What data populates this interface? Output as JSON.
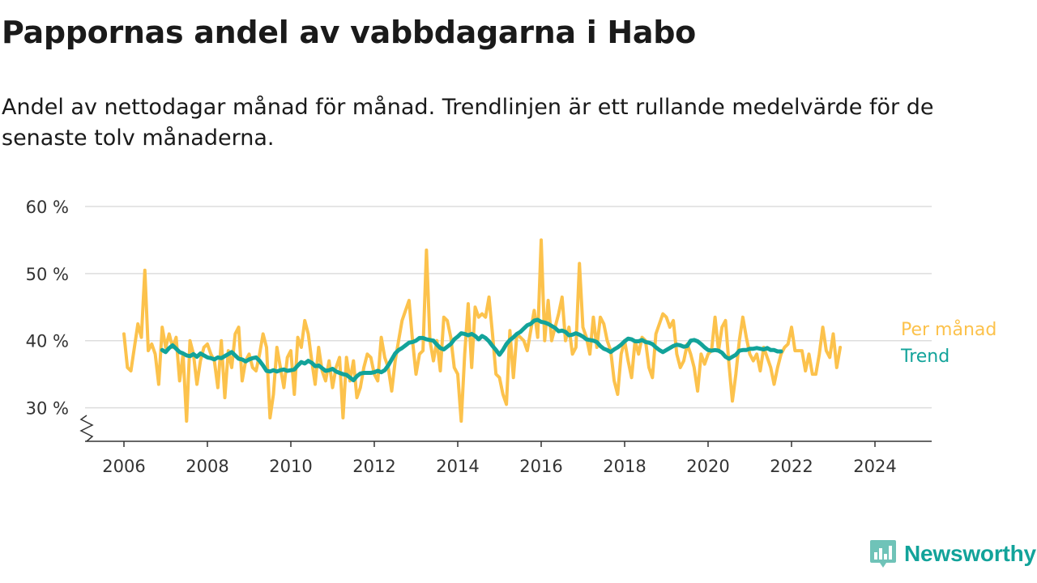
{
  "header": {
    "title": "Pappornas andel av vabbdagarna i Habo",
    "subtitle": "Andel av nettodagar månad för månad. Trendlinjen är ett rullande medelvärde för de senaste tolv månaderna."
  },
  "brand": {
    "name": "Newsworthy",
    "icon": "bar-chart-logo-icon",
    "color": "#12a39a"
  },
  "colors": {
    "monthly": "#fcc24c",
    "trend": "#12a39a",
    "grid": "#dddddd",
    "axis": "#333333"
  },
  "chart_data": {
    "type": "line",
    "title": "Pappornas andel av vabbdagarna i Habo",
    "xlabel": "",
    "ylabel": "",
    "ylim": [
      25,
      60
    ],
    "y_ticks": [
      30,
      40,
      50,
      60
    ],
    "y_tick_labels": [
      "30 %",
      "40 %",
      "50 %",
      "60 %"
    ],
    "xlim": [
      2005.5,
      2025.2
    ],
    "x_ticks": [
      2006,
      2008,
      2010,
      2012,
      2014,
      2016,
      2018,
      2020,
      2022,
      2024
    ],
    "x_tick_labels": [
      "2006",
      "2008",
      "2010",
      "2012",
      "2014",
      "2016",
      "2018",
      "2020",
      "2022",
      "2024"
    ],
    "broken_y_axis": true,
    "grid": "horizontal",
    "legend_placement": "end-of-line labels, right",
    "series": [
      {
        "name": "Per månad",
        "color": "#fcc24c",
        "start": "2006-01",
        "frequency": "monthly",
        "values": [
          41,
          36,
          35.5,
          39,
          42.5,
          40.5,
          50.5,
          38.5,
          39.5,
          38,
          33.5,
          42,
          39,
          41,
          39,
          40.5,
          34,
          38,
          28,
          40,
          38,
          33.5,
          37,
          39,
          39.5,
          38,
          37,
          33,
          40,
          31.5,
          38.5,
          36,
          41,
          42,
          34,
          37,
          38,
          36,
          35.5,
          38,
          41,
          39,
          28.5,
          32,
          39,
          36,
          33,
          37.5,
          38.5,
          32,
          40.5,
          39,
          43,
          41,
          37,
          33.5,
          39,
          35.5,
          34,
          37,
          33,
          36,
          37.5,
          28.5,
          37.5,
          34,
          37,
          31.5,
          33,
          36,
          38,
          37.5,
          35,
          34,
          40.5,
          37.5,
          36,
          32.5,
          37,
          40,
          43,
          44.5,
          46,
          40,
          35,
          38,
          38.5,
          53.5,
          40,
          37,
          40,
          35.5,
          43.5,
          43,
          40.5,
          36,
          35,
          28,
          38,
          45.5,
          36,
          45,
          43.5,
          44,
          43.5,
          46.5,
          41,
          35,
          34.5,
          32,
          30.5,
          41.5,
          34.5,
          41,
          40.5,
          40,
          38.5,
          41.5,
          44.5,
          40.5,
          55,
          40,
          46,
          40,
          42,
          44,
          46.5,
          40,
          42,
          38,
          39,
          51.5,
          42,
          40.5,
          38,
          43.5,
          39,
          43.5,
          42.5,
          40,
          38.5,
          34,
          32,
          38,
          40,
          37,
          34.5,
          40,
          38,
          40.5,
          40,
          36,
          34.5,
          41,
          42.5,
          44,
          43.5,
          42,
          43,
          38,
          36,
          37,
          39.5,
          38,
          36,
          32.5,
          38,
          36.5,
          38,
          38.5,
          43.5,
          38.5,
          42,
          43,
          36.5,
          31,
          35,
          40,
          43.5,
          40.5,
          38,
          37,
          38,
          35.5,
          39,
          37.5,
          36,
          33.5,
          36,
          38,
          39,
          39.5,
          42,
          38.5,
          38.5,
          38.5,
          35.5,
          38,
          35,
          35,
          38,
          42,
          38.5,
          37.5,
          41,
          36,
          39
        ]
      },
      {
        "name": "Trend",
        "color": "#12a39a",
        "start": "2006-12",
        "frequency": "monthly",
        "values": [
          38.6,
          38.3,
          38.9,
          39.3,
          38.8,
          38.3,
          38.1,
          37.8,
          37.7,
          38,
          37.6,
          38.1,
          37.8,
          37.5,
          37.4,
          37.2,
          37.5,
          37.4,
          37.7,
          38,
          38.3,
          37.8,
          37.3,
          37.2,
          36.9,
          37.2,
          37.4,
          37.5,
          37,
          36.3,
          35.5,
          35.4,
          35.6,
          35.4,
          35.6,
          35.7,
          35.5,
          35.6,
          35.7,
          36.3,
          36.8,
          36.6,
          37,
          36.7,
          36.2,
          36.3,
          35.9,
          35.5,
          35.6,
          35.8,
          35.4,
          35.2,
          35,
          34.9,
          34.5,
          34.1,
          34.7,
          35.1,
          35.2,
          35.2,
          35.2,
          35.3,
          35.5,
          35.3,
          35.6,
          36.3,
          37.2,
          38.1,
          38.6,
          38.9,
          39.3,
          39.7,
          39.8,
          40,
          40.4,
          40.4,
          40.2,
          40.1,
          40,
          39.4,
          38.9,
          38.7,
          39.1,
          39.5,
          40.2,
          40.6,
          41.1,
          41,
          40.8,
          41,
          40.7,
          40.2,
          40.7,
          40.4,
          39.9,
          39.2,
          38.6,
          37.9,
          38.6,
          39.5,
          40.1,
          40.5,
          41,
          41.3,
          41.8,
          42.3,
          42.5,
          43,
          43.1,
          42.8,
          42.7,
          42.5,
          42.2,
          41.9,
          41.4,
          41.5,
          41.3,
          40.8,
          40.9,
          41.1,
          40.9,
          40.6,
          40.2,
          40.1,
          40,
          39.8,
          39.2,
          38.8,
          38.6,
          38.3,
          38.7,
          39,
          39.4,
          39.9,
          40.3,
          40.2,
          39.9,
          39.9,
          40.1,
          39.8,
          39.7,
          39.5,
          39,
          38.6,
          38.3,
          38.6,
          38.9,
          39.2,
          39.4,
          39.3,
          39.1,
          39.2,
          40,
          40.1,
          39.9,
          39.5,
          39,
          38.6,
          38.5,
          38.6,
          38.5,
          38.2,
          37.6,
          37.3,
          37.6,
          37.9,
          38.5,
          38.6,
          38.6,
          38.8,
          38.8,
          38.9,
          38.8,
          38.7,
          38.9,
          38.6,
          38.6,
          38.4,
          38.4
        ]
      }
    ]
  }
}
